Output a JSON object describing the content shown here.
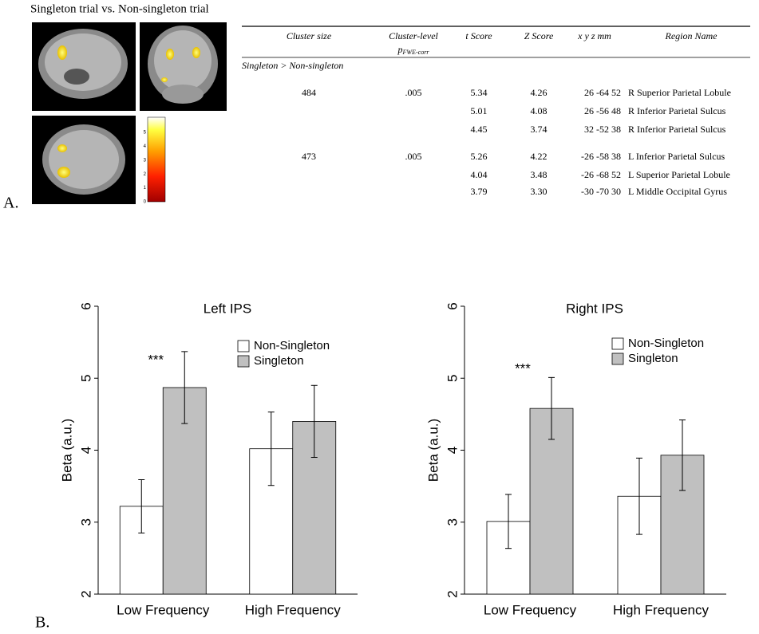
{
  "panel_a": {
    "label": "A.",
    "title": "Singleton trial vs. Non-singleton trial",
    "colorbar_ticks": [
      0,
      1,
      2,
      3,
      4,
      5
    ],
    "table": {
      "headers": {
        "cluster_size": "Cluster size",
        "cluster_level": "Cluster-level",
        "cluster_p": "p",
        "cluster_p_sub": "FWE-corr",
        "t": "t Score",
        "z": "Z Score",
        "xyz": "x y z mm",
        "region": "Region Name"
      },
      "section": "Singleton > Non-singleton",
      "rows": [
        {
          "cluster_size": "484",
          "cluster_p": ".005",
          "t": "5.34",
          "z": "4.26",
          "xyz": "26 -64 52",
          "region": "R Superior Parietal Lobule"
        },
        {
          "t": "5.01",
          "z": "4.08",
          "xyz": "26 -56 48",
          "region": "R Inferior Parietal Sulcus"
        },
        {
          "t": "4.45",
          "z": "3.74",
          "xyz": "32 -52 38",
          "region": "R Inferior Parietal Sulcus"
        },
        {
          "cluster_size": "473",
          "cluster_p": ".005",
          "t": "5.26",
          "z": "4.22",
          "xyz": "-26 -58 38",
          "region": "L Inferior Parietal Sulcus"
        },
        {
          "t": "4.04",
          "z": "3.48",
          "xyz": "-26 -68 52",
          "region": "L Superior Parietal Lobule"
        },
        {
          "t": "3.79",
          "z": "3.30",
          "xyz": "-30 -70 30",
          "region": "L Middle Occipital Gyrus"
        }
      ]
    }
  },
  "panel_b": {
    "label": "B."
  },
  "chart_data": [
    {
      "type": "bar",
      "title": "Left IPS",
      "y_label": "Beta (a.u.)",
      "categories": [
        "Low Frequency",
        "High Frequency"
      ],
      "series": [
        {
          "name": "Non-Singleton",
          "color": "#ffffff",
          "values": [
            3.22,
            4.02
          ],
          "errors": [
            0.37,
            0.51
          ]
        },
        {
          "name": "Singleton",
          "color": "#c0c0c0",
          "values": [
            4.87,
            4.4
          ],
          "errors": [
            0.5,
            0.5
          ]
        }
      ],
      "annotation": "***",
      "ylim": [
        2,
        6
      ],
      "yticks": [
        2,
        3,
        4,
        5,
        6
      ]
    },
    {
      "type": "bar",
      "title": "Right IPS",
      "y_label": "Beta (a.u.)",
      "categories": [
        "Low Frequency",
        "High Frequency"
      ],
      "series": [
        {
          "name": "Non-Singleton",
          "color": "#ffffff",
          "values": [
            3.01,
            3.36
          ],
          "errors": [
            0.375,
            0.53
          ]
        },
        {
          "name": "Singleton",
          "color": "#c0c0c0",
          "values": [
            4.58,
            3.93
          ],
          "errors": [
            0.43,
            0.49
          ]
        }
      ],
      "annotation": "***",
      "ylim": [
        2,
        6
      ],
      "yticks": [
        2,
        3,
        4,
        5,
        6
      ]
    }
  ]
}
